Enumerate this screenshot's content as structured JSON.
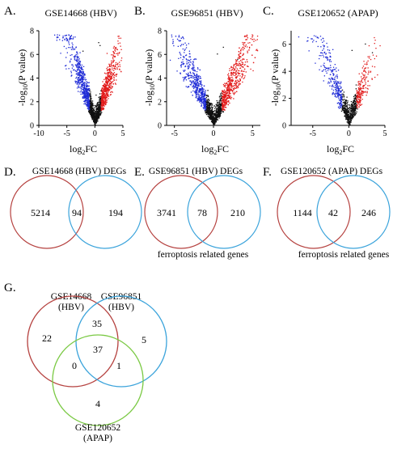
{
  "colors": {
    "down": "#1f2bd6",
    "up": "#e21a1a",
    "neutral": "#111111",
    "venn_red": "#b5413f",
    "venn_blue": "#3aa3db",
    "venn_green": "#7ac943"
  },
  "volcano_ylabel_prefix": "-log",
  "volcano_ylabel_sub": "10",
  "volcano_ylabel_suffix": "(P value)",
  "volcano_xlabel_prefix": "log",
  "volcano_xlabel_sub": "2",
  "volcano_xlabel_suffix": "FC",
  "venn_caption": "ferroptosis related genes",
  "chart_data": [
    {
      "panel": "A.",
      "type": "scatter",
      "title": "GSE14668 (HBV)",
      "xlim": [
        -10,
        5
      ],
      "ylim": [
        0,
        8
      ],
      "xticks": [
        "-10",
        "-5",
        "0",
        "5"
      ],
      "yticks": [
        "0",
        "2",
        "4",
        "6",
        "8"
      ],
      "threshold_y": 1.3
    },
    {
      "panel": "B.",
      "type": "scatter",
      "title": "GSE96851 (HBV)",
      "xlim": [
        -6,
        6
      ],
      "ylim": [
        0,
        8
      ],
      "xticks": [
        "-5",
        "0",
        "5"
      ],
      "yticks": [
        "0",
        "2",
        "4",
        "6",
        "8"
      ],
      "threshold_y": 1.3
    },
    {
      "panel": "C.",
      "type": "scatter",
      "title": "GSE120652 (APAP)",
      "xlim": [
        -8,
        5
      ],
      "ylim": [
        0,
        7
      ],
      "xticks": [
        "-5",
        "0",
        "5"
      ],
      "yticks": [
        "0",
        "2",
        "4",
        "6"
      ],
      "threshold_y": 1.3
    },
    {
      "panel": "D.",
      "type": "venn",
      "title": "GSE14668 (HBV) DEGs",
      "sets": [
        "GSE14668 (HBV) DEGs",
        "ferroptosis related genes"
      ],
      "regions": {
        "only_a": 5214,
        "both": 94,
        "only_b": 194
      }
    },
    {
      "panel": "E.",
      "type": "venn",
      "title": "GSE96851 (HBV) DEGs",
      "sets": [
        "GSE96851 (HBV) DEGs",
        "ferroptosis related genes"
      ],
      "regions": {
        "only_a": 3741,
        "both": 78,
        "only_b": 210
      }
    },
    {
      "panel": "F.",
      "type": "venn",
      "title": "GSE120652 (APAP) DEGs",
      "sets": [
        "GSE120652 (APAP) DEGs",
        "ferroptosis related genes"
      ],
      "regions": {
        "only_a": 1144,
        "both": 42,
        "only_b": 246
      }
    },
    {
      "panel": "G.",
      "type": "venn",
      "sets": [
        {
          "line1": "GSE14668",
          "line2": "(HBV)"
        },
        {
          "line1": "GSE96851",
          "line2": "(HBV)"
        },
        {
          "line1": "GSE120652",
          "line2": "(APAP)"
        }
      ],
      "regions": {
        "only_a": 22,
        "a_b": 35,
        "only_b": 5,
        "a_c": 0,
        "abc": 37,
        "b_c": 1,
        "only_c": 4
      }
    }
  ]
}
